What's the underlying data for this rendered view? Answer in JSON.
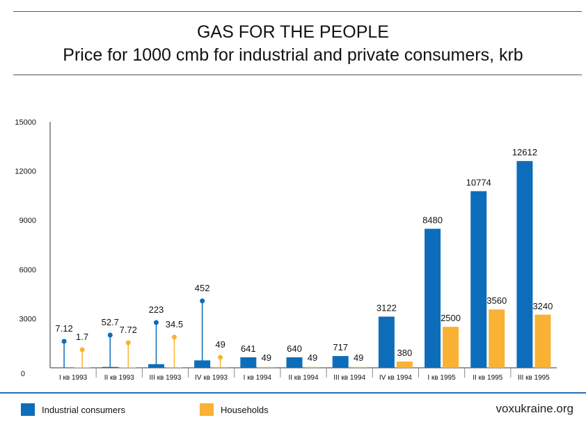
{
  "header": {
    "title": "GAS FOR THE PEOPLE",
    "subtitle": "Price for 1000 cmb for industrial and private consumers, krb"
  },
  "legend": {
    "industrial_label": "Industrial consumers",
    "households_label": "Households"
  },
  "source": "voxukraine.org",
  "colors": {
    "industrial": "#0d6dba",
    "households": "#f9b233",
    "axis": "#333333",
    "accent_line": "#1f6fba"
  },
  "chart_data": {
    "type": "bar",
    "categories": [
      "I кв 1993",
      "II кв 1993",
      "III кв 1993",
      "IV кв 1993",
      "I кв 1994",
      "II кв 1994",
      "III кв 1994",
      "IV кв 1994",
      "I кв 1995",
      "II кв 1995",
      "III кв 1995"
    ],
    "series": [
      {
        "name": "Industrial consumers",
        "values": [
          7.12,
          52.7,
          223,
          452,
          641,
          640,
          717,
          3122,
          8480,
          10774,
          12612
        ],
        "labels": [
          "7.12",
          "52.7",
          "223",
          "452",
          "641",
          "640",
          "717",
          "3122",
          "8480",
          "10774",
          "12612"
        ]
      },
      {
        "name": "Households",
        "values": [
          1.7,
          7.72,
          34.5,
          49,
          49,
          49,
          49,
          380,
          2500,
          3560,
          3240
        ],
        "labels": [
          "1.7",
          "7.72",
          "34.5",
          "49",
          "49",
          "49",
          "49",
          "380",
          "2500",
          "3560",
          "3240"
        ]
      }
    ],
    "callout_categories": [
      0,
      1,
      2,
      3
    ],
    "yticks": [
      0,
      3000,
      6000,
      9000,
      12000,
      15000
    ],
    "ylim": [
      0,
      15000
    ],
    "grid": false,
    "legend_position": "bottom"
  }
}
